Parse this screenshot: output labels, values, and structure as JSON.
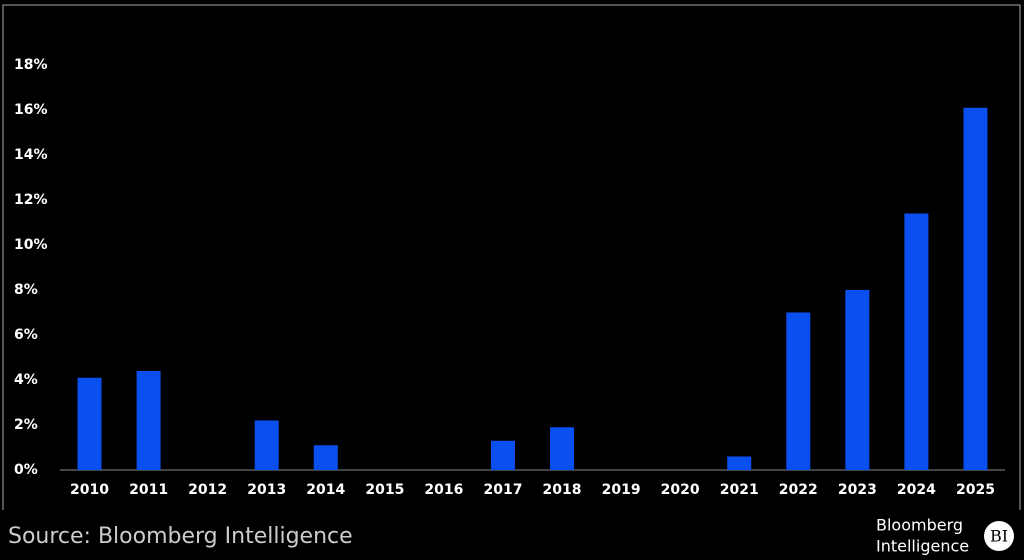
{
  "chart_data": {
    "type": "bar",
    "categories": [
      "2010",
      "2011",
      "2012",
      "2013",
      "2014",
      "2015",
      "2016",
      "2017",
      "2018",
      "2019",
      "2020",
      "2021",
      "2022",
      "2023",
      "2024",
      "2025"
    ],
    "values": [
      4.1,
      4.4,
      0,
      2.2,
      1.1,
      0,
      0,
      1.3,
      1.9,
      0,
      0,
      0.6,
      7.0,
      8.0,
      11.4,
      16.1
    ],
    "color": "#0a4ff0",
    "ylim": [
      0,
      20
    ],
    "yticks": [
      {
        "value": 0,
        "label": "0%"
      },
      {
        "value": 2,
        "label": "2%"
      },
      {
        "value": 4,
        "label": "4%"
      },
      {
        "value": 6,
        "label": "6%"
      },
      {
        "value": 8,
        "label": "8%"
      },
      {
        "value": 10,
        "label": "10%"
      },
      {
        "value": 12,
        "label": "12%"
      },
      {
        "value": 14,
        "label": "14%"
      },
      {
        "value": 16,
        "label": "16%"
      },
      {
        "value": 18,
        "label": "18%"
      }
    ],
    "grid": false,
    "source": "Source: Bloomberg Intelligence"
  },
  "logo": {
    "line1": "Bloomberg",
    "line2": "Intelligence",
    "badge": "BI"
  }
}
